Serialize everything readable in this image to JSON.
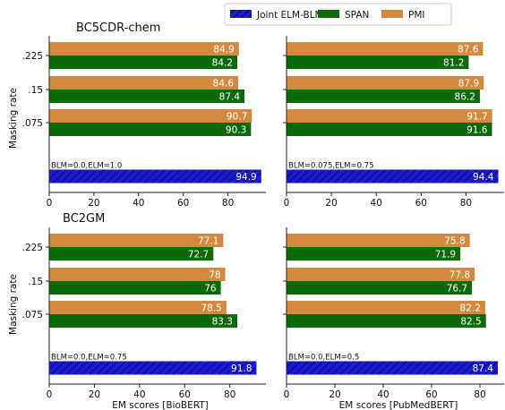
{
  "legend": {
    "placement": "top-right",
    "items": [
      {
        "label": "Joint ELM-BLM",
        "color": "#1a1ad6",
        "hatch": true
      },
      {
        "label": "SPAN",
        "color": "#0b6b0b",
        "hatch": false
      },
      {
        "label": "PMI",
        "color": "#d38a40",
        "hatch": false
      }
    ]
  },
  "colors": {
    "pmi": "#d38a40",
    "span": "#0b6b0b",
    "joint": "#1a1ad6",
    "joint_hatch": "#0a0a55"
  },
  "chart_data": [
    {
      "type": "bar",
      "orientation": "horizontal",
      "title": "BC5CDR-chem",
      "ylabel": "Masking rate",
      "xlabel": "",
      "xlim": [
        0,
        97
      ],
      "xticks": [
        0,
        20,
        40,
        60,
        80
      ],
      "categories": [
        ".225",
        ".15",
        ".075"
      ],
      "series": [
        {
          "name": "PMI",
          "values": [
            84.9,
            84.6,
            90.7
          ]
        },
        {
          "name": "SPAN",
          "values": [
            84.2,
            87.4,
            90.3
          ]
        }
      ],
      "joint": {
        "name": "Joint ELM-BLM",
        "label": "BLM=0.0,ELM=1.0",
        "value": 94.9
      }
    },
    {
      "type": "bar",
      "orientation": "horizontal",
      "title": "",
      "ylabel": "",
      "xlabel": "",
      "xlim": [
        0,
        97
      ],
      "xticks": [
        0,
        20,
        40,
        60,
        80
      ],
      "categories": [
        ".225",
        ".15",
        ".075"
      ],
      "series": [
        {
          "name": "PMI",
          "values": [
            87.6,
            87.9,
            91.7
          ]
        },
        {
          "name": "SPAN",
          "values": [
            81.2,
            86.2,
            91.6
          ]
        }
      ],
      "joint": {
        "name": "Joint ELM-BLM",
        "label": "BLM=0.075,ELM=0.75",
        "value": 94.4
      }
    },
    {
      "type": "bar",
      "orientation": "horizontal",
      "title": "BC2GM",
      "ylabel": "Masking rate",
      "xlabel": "EM scores [BioBERT]",
      "xlim": [
        0,
        96
      ],
      "xticks": [
        0,
        20,
        40,
        60,
        80
      ],
      "categories": [
        ".225",
        ".15",
        ".075"
      ],
      "series": [
        {
          "name": "PMI",
          "values": [
            77.1,
            78,
            78.5
          ]
        },
        {
          "name": "SPAN",
          "values": [
            72.7,
            76,
            83.3
          ]
        }
      ],
      "joint": {
        "name": "Joint ELM-BLM",
        "label": "BLM=0.0,ELM=0.75",
        "value": 91.8
      }
    },
    {
      "type": "bar",
      "orientation": "horizontal",
      "title": "",
      "ylabel": "",
      "xlabel": "EM scores [PubMedBERT]",
      "xlim": [
        0,
        90
      ],
      "xticks": [
        0,
        20,
        40,
        60,
        80
      ],
      "categories": [
        ".225",
        ".15",
        ".075"
      ],
      "series": [
        {
          "name": "PMI",
          "values": [
            75.8,
            77.8,
            82.2
          ]
        },
        {
          "name": "SPAN",
          "values": [
            71.9,
            76.7,
            82.5
          ]
        }
      ],
      "joint": {
        "name": "Joint ELM-BLM",
        "label": "BLM=0.0,ELM=0.5",
        "value": 87.4
      }
    }
  ]
}
